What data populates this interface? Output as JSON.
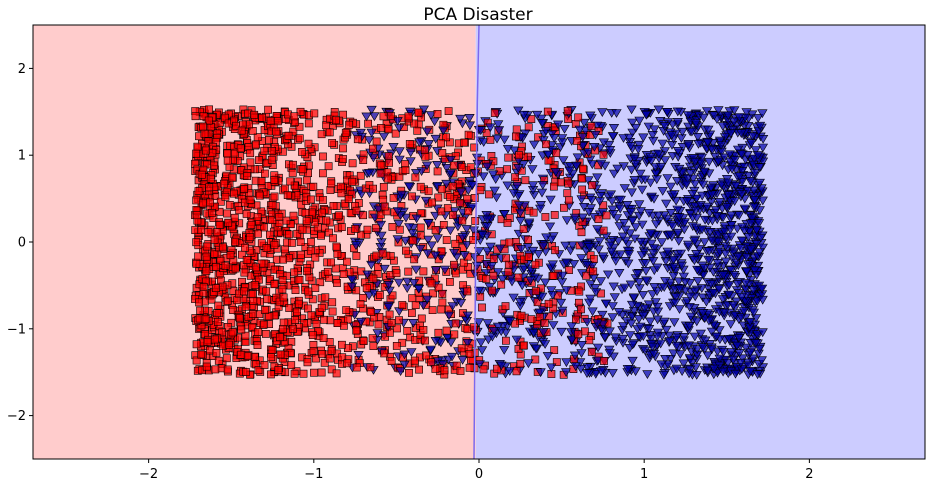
{
  "chart_data": {
    "type": "scatter",
    "title": "PCA Disaster",
    "xlabel": "",
    "ylabel": "",
    "xlim": [
      -2.7,
      2.7
    ],
    "ylim": [
      -2.5,
      2.5
    ],
    "x_ticks": [
      -2,
      -1,
      0,
      1,
      2
    ],
    "x_tick_labels": [
      "−2",
      "−1",
      "0",
      "1",
      "2"
    ],
    "y_ticks": [
      -2,
      -1,
      0,
      1,
      2
    ],
    "y_tick_labels": [
      "−2",
      "−1",
      "0",
      "1",
      "2"
    ],
    "grid": false,
    "decision_boundary": {
      "color": "#7b68ee",
      "points": [
        [
          -0.03,
          -2.5
        ],
        [
          -0.02,
          0.0
        ],
        [
          -0.01,
          1.6
        ],
        [
          0.0,
          2.5
        ]
      ]
    },
    "regions": [
      {
        "side": "left",
        "color": "#ffcccc"
      },
      {
        "side": "right",
        "color": "#ccccff"
      }
    ],
    "series": [
      {
        "marker": "square",
        "color": "#ff0000",
        "edge_color": "#000000",
        "x_range": [
          -1.72,
          0.78
        ],
        "y_range": [
          -1.53,
          1.53
        ],
        "density_profile": {
          "x": [
            -1.72,
            -0.75,
            0.0,
            0.78
          ],
          "weight": [
            1.0,
            0.28,
            0.2,
            0.12
          ]
        }
      },
      {
        "marker": "triangle-down",
        "color": "#0000aa",
        "edge_color": "#000000",
        "x_range": [
          -0.78,
          1.72
        ],
        "y_range": [
          -1.53,
          1.53
        ],
        "density_profile": {
          "x": [
            -0.78,
            0.0,
            0.78,
            1.72
          ],
          "weight": [
            0.12,
            0.2,
            0.28,
            1.0
          ]
        }
      }
    ]
  }
}
